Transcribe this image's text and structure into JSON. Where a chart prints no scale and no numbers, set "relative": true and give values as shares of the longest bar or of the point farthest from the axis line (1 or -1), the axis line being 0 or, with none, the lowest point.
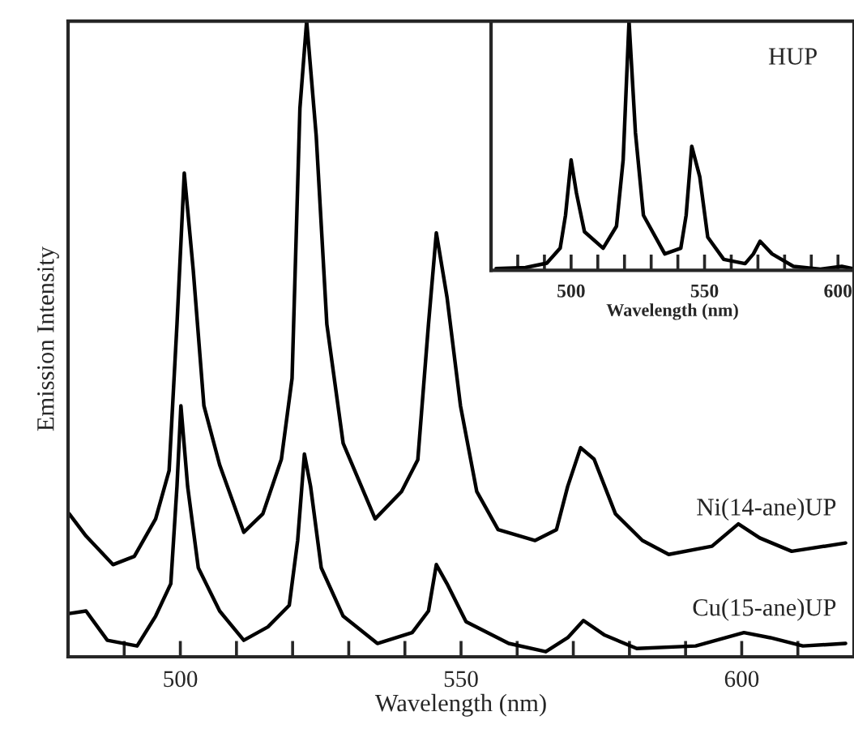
{
  "chart_data": [
    {
      "type": "line",
      "xlabel": "Wavelength (nm)",
      "ylabel": "Emission Intensity",
      "relative": true,
      "xlim": [
        480,
        620
      ],
      "xticks": [
        {
          "value": 480,
          "label": null
        },
        {
          "value": 490,
          "label": null
        },
        500,
        {
          "value": 510,
          "label": null
        },
        {
          "value": 520,
          "label": null
        },
        {
          "value": 530,
          "label": null
        },
        {
          "value": 540,
          "label": null
        },
        550,
        {
          "value": 560,
          "label": null
        },
        {
          "value": 570,
          "label": null
        },
        {
          "value": 580,
          "label": null
        },
        {
          "value": 590,
          "label": null
        },
        600,
        {
          "value": 610,
          "label": null
        }
      ],
      "series": [
        {
          "name": "Ni(14-ane)UP",
          "color": "#000000",
          "x": [
            480.2,
            483.2,
            488,
            491.8,
            495.6,
            498,
            499.4,
            500.7,
            502.3,
            504.2,
            507,
            511.3,
            514.7,
            518,
            519.9,
            521.3,
            522.5,
            524.2,
            526.1,
            529,
            534.7,
            539.4,
            542.3,
            544.2,
            545.6,
            547.5,
            549.9,
            552.8,
            556.6,
            563.2,
            567,
            569,
            571.3,
            573.7,
            577.5,
            582.3,
            587,
            594.7,
            599.4,
            603.2,
            608.9,
            618.5
          ],
          "values": [
            0.225,
            0.19,
            0.145,
            0.158,
            0.217,
            0.293,
            0.523,
            0.761,
            0.608,
            0.395,
            0.302,
            0.196,
            0.225,
            0.311,
            0.438,
            0.863,
            1.0,
            0.82,
            0.523,
            0.336,
            0.217,
            0.26,
            0.31,
            0.523,
            0.667,
            0.566,
            0.395,
            0.26,
            0.2,
            0.183,
            0.2,
            0.268,
            0.329,
            0.311,
            0.225,
            0.183,
            0.161,
            0.174,
            0.209,
            0.187,
            0.166,
            0.179
          ]
        },
        {
          "name": "Cu(15-ane)UP",
          "color": "#000000",
          "x": [
            480.2,
            483.2,
            487,
            492.3,
            495.6,
            498.3,
            499.4,
            500.1,
            501.3,
            503.2,
            507,
            511.3,
            515.6,
            519.4,
            520.9,
            522.1,
            523.2,
            525.1,
            529,
            535.1,
            541.3,
            544.2,
            545.6,
            547.5,
            550.9,
            558.5,
            565.1,
            569,
            571.8,
            575.6,
            581.3,
            591.8,
            600.4,
            605.1,
            610.9,
            618.5
          ],
          "values": [
            0.068,
            0.072,
            0.026,
            0.017,
            0.064,
            0.115,
            0.268,
            0.395,
            0.268,
            0.14,
            0.072,
            0.026,
            0.047,
            0.081,
            0.183,
            0.319,
            0.268,
            0.14,
            0.064,
            0.021,
            0.038,
            0.072,
            0.145,
            0.115,
            0.055,
            0.021,
            0.008,
            0.03,
            0.057,
            0.034,
            0.013,
            0.017,
            0.038,
            0.03,
            0.017,
            0.021
          ]
        }
      ]
    },
    {
      "type": "line",
      "xlabel": "Wavelength (nm)",
      "relative": true,
      "xlim": [
        470,
        606
      ],
      "xticks": [
        {
          "value": 480,
          "label": null
        },
        {
          "value": 490,
          "label": null
        },
        500,
        {
          "value": 510,
          "label": null
        },
        {
          "value": 520,
          "label": null
        },
        {
          "value": 530,
          "label": null
        },
        {
          "value": 540,
          "label": null
        },
        550,
        {
          "value": 560,
          "label": null
        },
        {
          "value": 570,
          "label": null
        },
        {
          "value": 580,
          "label": null
        },
        {
          "value": 590,
          "label": null
        },
        600
      ],
      "series": [
        {
          "name": "HUP",
          "color": "#000000",
          "x": [
            471.9,
            482.9,
            490.9,
            495.9,
            497.9,
            500,
            502,
            505,
            512,
            517,
            519.5,
            521.7,
            524.1,
            527.1,
            535.1,
            541.1,
            543.1,
            545.2,
            548.2,
            551.2,
            557.2,
            565.2,
            568.3,
            570.8,
            575.3,
            583.3,
            593.4,
            601.4,
            605.4
          ],
          "values": [
            0.007,
            0.011,
            0.029,
            0.089,
            0.221,
            0.443,
            0.31,
            0.155,
            0.089,
            0.177,
            0.443,
            1.0,
            0.553,
            0.221,
            0.066,
            0.089,
            0.221,
            0.498,
            0.376,
            0.133,
            0.044,
            0.027,
            0.066,
            0.117,
            0.066,
            0.016,
            0.005,
            0.016,
            0.007
          ]
        }
      ]
    }
  ]
}
